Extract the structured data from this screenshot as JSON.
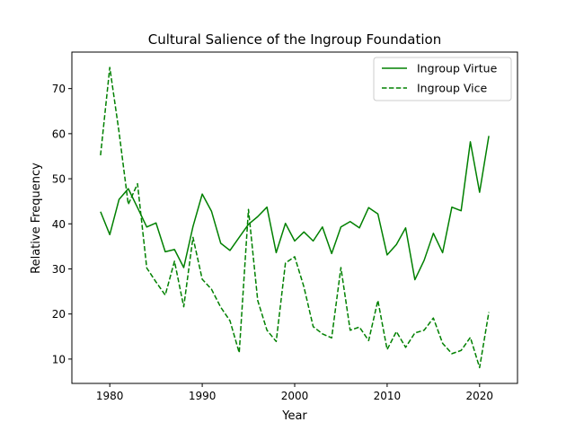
{
  "chart_data": {
    "type": "line",
    "title": "Cultural Salience of the Ingroup Foundation",
    "xlabel": "Year",
    "ylabel": "Relative Frequency",
    "xlim": [
      1975.9,
      2024.1
    ],
    "ylim": [
      4.6,
      78.1
    ],
    "xticks": [
      1980,
      1990,
      2000,
      2010,
      2020
    ],
    "yticks": [
      10,
      20,
      30,
      40,
      50,
      60,
      70
    ],
    "grid": false,
    "legend_position": "top-right",
    "color": "#008000",
    "x": [
      1979,
      1980,
      1981,
      1982,
      1983,
      1984,
      1985,
      1986,
      1987,
      1988,
      1989,
      1990,
      1991,
      1992,
      1993,
      1994,
      1995,
      1996,
      1997,
      1998,
      1999,
      2000,
      2001,
      2002,
      2003,
      2004,
      2005,
      2006,
      2007,
      2008,
      2009,
      2010,
      2011,
      2012,
      2013,
      2014,
      2015,
      2016,
      2017,
      2018,
      2019,
      2020,
      2021
    ],
    "series": [
      {
        "name": "Ingroup Virtue",
        "style": "solid",
        "values": [
          42.7,
          37.6,
          45.4,
          47.8,
          43.6,
          39.3,
          40.2,
          33.8,
          34.3,
          30.3,
          39.4,
          46.6,
          42.8,
          35.7,
          34.1,
          37.0,
          39.9,
          41.6,
          43.7,
          33.6,
          40.1,
          36.2,
          38.2,
          36.2,
          39.3,
          33.4,
          39.3,
          40.5,
          39.1,
          43.6,
          42.2,
          33.1,
          35.4,
          39.1,
          27.6,
          31.9,
          37.9,
          33.6,
          43.7,
          42.9,
          58.2,
          47.0,
          59.5
        ]
      },
      {
        "name": "Ingroup Vice",
        "style": "dashed",
        "values": [
          55.2,
          74.7,
          60.4,
          44.3,
          48.9,
          30.2,
          27.1,
          24.2,
          31.7,
          21.6,
          37.0,
          27.7,
          25.5,
          21.5,
          18.5,
          11.4,
          43.2,
          23.0,
          16.4,
          13.9,
          31.3,
          32.7,
          26.0,
          17.2,
          15.6,
          14.7,
          30.3,
          16.4,
          17.1,
          14.1,
          23.0,
          12.1,
          16.1,
          12.6,
          15.8,
          16.4,
          19.1,
          13.5,
          11.2,
          11.9,
          14.8,
          8.1,
          20.4
        ]
      }
    ]
  }
}
